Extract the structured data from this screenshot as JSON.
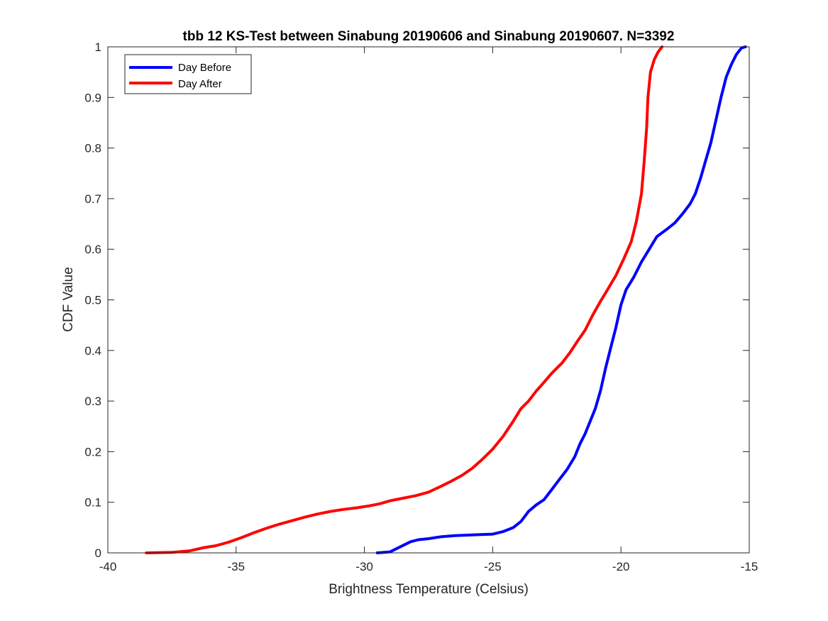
{
  "chart_data": {
    "type": "line",
    "title": "tbb 12 KS-Test between Sinabung 20190606 and Sinabung 20190607. N=3392",
    "xlabel": "Brightness Temperature (Celsius)",
    "ylabel": "CDF Value",
    "xlim": [
      -40,
      -15
    ],
    "ylim": [
      0,
      1
    ],
    "xticks": [
      -40,
      -35,
      -30,
      -25,
      -20,
      -15
    ],
    "yticks": [
      0,
      0.1,
      0.2,
      0.3,
      0.4,
      0.5,
      0.6,
      0.7,
      0.8,
      0.9,
      1
    ],
    "xtick_labels": [
      "-40",
      "-35",
      "-30",
      "-25",
      "-20",
      "-15"
    ],
    "ytick_labels": [
      "0",
      "0.1",
      "0.2",
      "0.3",
      "0.4",
      "0.5",
      "0.6",
      "0.7",
      "0.8",
      "0.9",
      "1"
    ],
    "grid": false,
    "legend_position": "top-left",
    "series": [
      {
        "name": "Day Before",
        "color": "#0000ff",
        "points": [
          [
            -29.5,
            0.0
          ],
          [
            -29.0,
            0.002
          ],
          [
            -28.6,
            0.012
          ],
          [
            -28.2,
            0.022
          ],
          [
            -27.9,
            0.026
          ],
          [
            -27.5,
            0.028
          ],
          [
            -27.0,
            0.032
          ],
          [
            -26.5,
            0.034
          ],
          [
            -26.0,
            0.035
          ],
          [
            -25.5,
            0.036
          ],
          [
            -25.0,
            0.037
          ],
          [
            -24.6,
            0.042
          ],
          [
            -24.2,
            0.05
          ],
          [
            -23.9,
            0.062
          ],
          [
            -23.6,
            0.082
          ],
          [
            -23.3,
            0.095
          ],
          [
            -23.0,
            0.105
          ],
          [
            -22.7,
            0.125
          ],
          [
            -22.4,
            0.145
          ],
          [
            -22.1,
            0.165
          ],
          [
            -21.8,
            0.19
          ],
          [
            -21.6,
            0.215
          ],
          [
            -21.4,
            0.235
          ],
          [
            -21.2,
            0.26
          ],
          [
            -21.0,
            0.285
          ],
          [
            -20.8,
            0.32
          ],
          [
            -20.6,
            0.365
          ],
          [
            -20.4,
            0.405
          ],
          [
            -20.2,
            0.445
          ],
          [
            -20.0,
            0.49
          ],
          [
            -19.8,
            0.52
          ],
          [
            -19.5,
            0.545
          ],
          [
            -19.2,
            0.575
          ],
          [
            -18.9,
            0.6
          ],
          [
            -18.6,
            0.625
          ],
          [
            -18.2,
            0.64
          ],
          [
            -17.9,
            0.652
          ],
          [
            -17.6,
            0.67
          ],
          [
            -17.3,
            0.69
          ],
          [
            -17.1,
            0.71
          ],
          [
            -16.9,
            0.74
          ],
          [
            -16.7,
            0.775
          ],
          [
            -16.5,
            0.81
          ],
          [
            -16.3,
            0.855
          ],
          [
            -16.1,
            0.9
          ],
          [
            -15.9,
            0.94
          ],
          [
            -15.7,
            0.965
          ],
          [
            -15.5,
            0.985
          ],
          [
            -15.3,
            0.998
          ],
          [
            -15.15,
            1.0
          ]
        ]
      },
      {
        "name": "Day After",
        "color": "#ff0000",
        "points": [
          [
            -38.5,
            0.0
          ],
          [
            -37.5,
            0.001
          ],
          [
            -36.8,
            0.004
          ],
          [
            -36.3,
            0.01
          ],
          [
            -35.8,
            0.014
          ],
          [
            -35.3,
            0.021
          ],
          [
            -34.8,
            0.03
          ],
          [
            -34.3,
            0.04
          ],
          [
            -33.8,
            0.049
          ],
          [
            -33.3,
            0.057
          ],
          [
            -32.8,
            0.064
          ],
          [
            -32.3,
            0.071
          ],
          [
            -31.8,
            0.077
          ],
          [
            -31.3,
            0.082
          ],
          [
            -30.8,
            0.086
          ],
          [
            -30.3,
            0.089
          ],
          [
            -29.8,
            0.093
          ],
          [
            -29.4,
            0.097
          ],
          [
            -29.0,
            0.103
          ],
          [
            -28.5,
            0.108
          ],
          [
            -28.0,
            0.113
          ],
          [
            -27.5,
            0.12
          ],
          [
            -27.0,
            0.132
          ],
          [
            -26.6,
            0.142
          ],
          [
            -26.2,
            0.153
          ],
          [
            -25.8,
            0.167
          ],
          [
            -25.4,
            0.185
          ],
          [
            -25.0,
            0.205
          ],
          [
            -24.6,
            0.23
          ],
          [
            -24.2,
            0.26
          ],
          [
            -23.9,
            0.285
          ],
          [
            -23.6,
            0.3
          ],
          [
            -23.3,
            0.32
          ],
          [
            -23.0,
            0.337
          ],
          [
            -22.7,
            0.355
          ],
          [
            -22.3,
            0.375
          ],
          [
            -22.0,
            0.395
          ],
          [
            -21.7,
            0.418
          ],
          [
            -21.4,
            0.44
          ],
          [
            -21.1,
            0.47
          ],
          [
            -20.8,
            0.497
          ],
          [
            -20.5,
            0.522
          ],
          [
            -20.2,
            0.548
          ],
          [
            -19.9,
            0.58
          ],
          [
            -19.6,
            0.615
          ],
          [
            -19.4,
            0.655
          ],
          [
            -19.2,
            0.71
          ],
          [
            -19.1,
            0.77
          ],
          [
            -19.0,
            0.84
          ],
          [
            -18.95,
            0.9
          ],
          [
            -18.85,
            0.95
          ],
          [
            -18.7,
            0.975
          ],
          [
            -18.55,
            0.99
          ],
          [
            -18.4,
            1.0
          ]
        ]
      }
    ]
  }
}
